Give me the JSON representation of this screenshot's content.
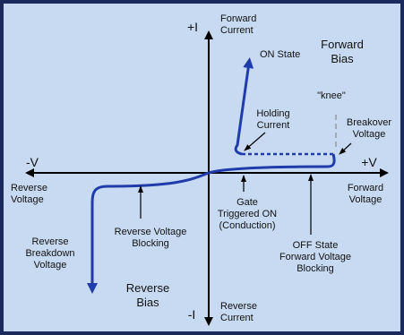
{
  "axes": {
    "positive_current": "+I",
    "negative_current": "-I",
    "negative_voltage": "-V",
    "positive_voltage": "+V"
  },
  "labels": {
    "forward_current": [
      "Forward",
      "Current"
    ],
    "forward_bias": [
      "Forward",
      "Bias"
    ],
    "on_state": [
      "ON State"
    ],
    "knee": [
      "\"knee\""
    ],
    "holding_current": [
      "Holding",
      "Current"
    ],
    "breakover_voltage": [
      "Breakover",
      "Voltage"
    ],
    "reverse_voltage": [
      "Reverse",
      "Voltage"
    ],
    "forward_voltage": [
      "Forward",
      "Voltage"
    ],
    "gate_triggered": [
      "Gate",
      "Triggered ON",
      "(Conduction)"
    ],
    "reverse_voltage_blocking": [
      "Reverse Voltage",
      "Blocking"
    ],
    "reverse_breakdown_voltage": [
      "Reverse",
      "Breakdown",
      "Voltage"
    ],
    "off_state_blocking": [
      "OFF State",
      "Forward Voltage",
      "Blocking"
    ],
    "reverse_bias": [
      "Reverse",
      "Bias"
    ],
    "reverse_current": [
      "Reverse",
      "Current"
    ]
  }
}
